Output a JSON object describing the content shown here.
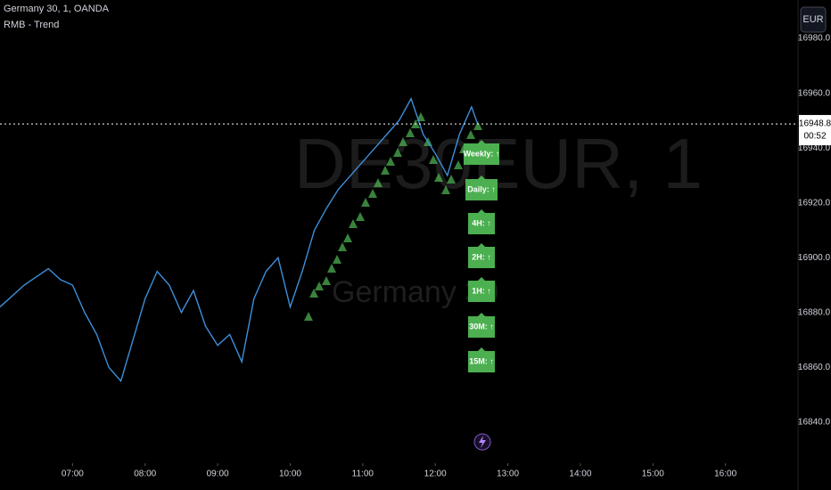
{
  "header": {
    "symbol": "Germany 30, 1, OANDA",
    "indicator": "RMB - Trend",
    "currency": "EUR"
  },
  "watermark": {
    "ticker": "DE30EUR, 1",
    "name": "Germany 30"
  },
  "chart_data": {
    "type": "line",
    "x": [
      "06:00",
      "06:10",
      "06:20",
      "06:30",
      "06:40",
      "06:50",
      "07:00",
      "07:10",
      "07:20",
      "07:30",
      "07:40",
      "07:50",
      "08:00",
      "08:10",
      "08:20",
      "08:30",
      "08:40",
      "08:50",
      "09:00",
      "09:10",
      "09:20",
      "09:30",
      "09:40",
      "09:50",
      "10:00",
      "10:10",
      "10:20",
      "10:30",
      "10:40",
      "10:50",
      "11:00",
      "11:10",
      "11:20",
      "11:30",
      "11:40",
      "11:50",
      "12:00",
      "12:10",
      "12:20",
      "12:30",
      "12:35"
    ],
    "values": [
      16882,
      16886,
      16890,
      16893,
      16896,
      16892,
      16890,
      16880,
      16872,
      16860,
      16855,
      16870,
      16885,
      16895,
      16890,
      16880,
      16888,
      16875,
      16868,
      16872,
      16862,
      16885,
      16895,
      16900,
      16882,
      16895,
      16910,
      16918,
      16925,
      16930,
      16935,
      16940,
      16945,
      16950,
      16958,
      16945,
      16938,
      16930,
      16945,
      16955,
      16948.8
    ],
    "color": "#3d8fd9",
    "xlim": [
      "06:00",
      "17:00"
    ],
    "xticks": [
      "07:00",
      "08:00",
      "09:00",
      "10:00",
      "11:00",
      "12:00",
      "13:00",
      "14:00",
      "15:00",
      "16:00"
    ],
    "ylim": [
      16825,
      16994
    ],
    "yticks": [
      {
        "value": 16840,
        "label": "16840.0"
      },
      {
        "value": 16860,
        "label": "16860.0"
      },
      {
        "value": 16880,
        "label": "16880.0"
      },
      {
        "value": 16900,
        "label": "16900.0"
      },
      {
        "value": 16920,
        "label": "16920.0"
      },
      {
        "value": 16940,
        "label": "16940.0"
      },
      {
        "value": 16960,
        "label": "16960.0"
      },
      {
        "value": 16980,
        "label": "16980.0"
      }
    ],
    "last_price": 16948.8,
    "countdown": "00:52"
  },
  "trend_panel": [
    "Weekly: ↑",
    "Daily: ↑",
    "4H: ↑",
    "2H: ↑",
    "1H: ↑",
    "30M: ↑",
    "15M: ↑"
  ]
}
